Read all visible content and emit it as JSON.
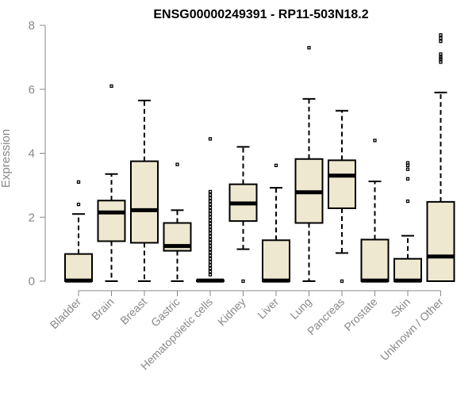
{
  "colors": {
    "box_fill": "#efe8d0",
    "box_stroke": "#000000",
    "axis": "#888888",
    "text": "#000000"
  },
  "chart_data": {
    "type": "boxplot",
    "title": "ENSG00000249391 - RP11-503N18.2",
    "xlabel": "",
    "ylabel": "Expression",
    "ylim": [
      0,
      8
    ],
    "yticks": [
      0,
      2,
      4,
      6,
      8
    ],
    "categories": [
      "Bladder",
      "Brain",
      "Breast",
      "Gastric",
      "Hematopoietic cells",
      "Kidney",
      "Liver",
      "Lung",
      "Pancreas",
      "Prostate",
      "Skin",
      "Unknown / Other"
    ],
    "boxes": [
      {
        "name": "Bladder",
        "whisker_low": 0,
        "q1": 0,
        "median": 0.02,
        "q3": 0.85,
        "whisker_high": 2.1,
        "outliers": [
          2.4,
          3.1
        ]
      },
      {
        "name": "Brain",
        "whisker_low": 0,
        "q1": 1.25,
        "median": 2.15,
        "q3": 2.52,
        "whisker_high": 3.35,
        "outliers": [
          6.1
        ]
      },
      {
        "name": "Breast",
        "whisker_low": 0,
        "q1": 1.2,
        "median": 2.22,
        "q3": 3.75,
        "whisker_high": 5.65,
        "outliers": []
      },
      {
        "name": "Gastric",
        "whisker_low": 0,
        "q1": 0.95,
        "median": 1.1,
        "q3": 1.82,
        "whisker_high": 2.22,
        "outliers": [
          3.65
        ]
      },
      {
        "name": "Hematopoietic cells",
        "whisker_low": 0,
        "q1": 0,
        "median": 0.02,
        "q3": 0.03,
        "whisker_high": 0.05,
        "outliers": [
          0.2,
          0.3,
          0.4,
          0.5,
          0.6,
          0.7,
          0.8,
          0.9,
          1.0,
          1.1,
          1.2,
          1.3,
          1.4,
          1.5,
          1.6,
          1.7,
          1.8,
          1.9,
          2.0,
          2.1,
          2.2,
          2.3,
          2.4,
          2.5,
          2.6,
          2.7,
          2.8,
          4.45
        ]
      },
      {
        "name": "Kidney",
        "whisker_low": 1.0,
        "q1": 1.88,
        "median": 2.43,
        "q3": 3.03,
        "whisker_high": 4.2,
        "outliers": [
          0
        ]
      },
      {
        "name": "Liver",
        "whisker_low": 0,
        "q1": 0,
        "median": 0.02,
        "q3": 1.28,
        "whisker_high": 2.92,
        "outliers": [
          3.62
        ]
      },
      {
        "name": "Lung",
        "whisker_low": 0,
        "q1": 1.82,
        "median": 2.78,
        "q3": 3.82,
        "whisker_high": 5.7,
        "outliers": [
          7.3
        ]
      },
      {
        "name": "Pancreas",
        "whisker_low": 0.88,
        "q1": 2.28,
        "median": 3.3,
        "q3": 3.78,
        "whisker_high": 5.33,
        "outliers": [
          0
        ]
      },
      {
        "name": "Prostate",
        "whisker_low": 0,
        "q1": 0,
        "median": 0.02,
        "q3": 1.3,
        "whisker_high": 3.12,
        "outliers": [
          4.4
        ]
      },
      {
        "name": "Skin",
        "whisker_low": 0,
        "q1": 0,
        "median": 0.02,
        "q3": 0.7,
        "whisker_high": 1.42,
        "outliers": [
          2.5,
          3.2,
          3.5,
          3.62,
          3.7
        ]
      },
      {
        "name": "Unknown / Other",
        "whisker_low": 0,
        "q1": 0,
        "median": 0.77,
        "q3": 2.48,
        "whisker_high": 5.9,
        "outliers": [
          6.85,
          6.95,
          7.0,
          7.1,
          7.5,
          7.6,
          7.7
        ]
      }
    ]
  }
}
